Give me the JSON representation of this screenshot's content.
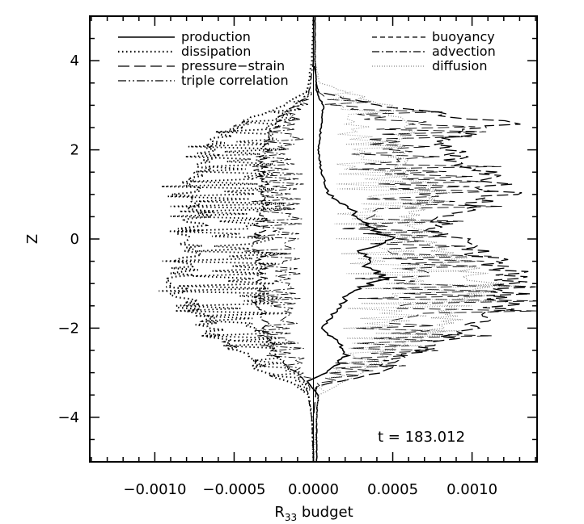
{
  "chart_data": {
    "type": "line",
    "title": "",
    "xlabel": "R",
    "xlabel_sub": "33",
    "xlabel_suffix": " budget",
    "ylabel": "Z",
    "xlim": [
      -0.00141,
      0.00141
    ],
    "ylim": [
      -5,
      5
    ],
    "x_ticks": [
      -0.001,
      -0.0005,
      0.0,
      0.0005,
      0.001
    ],
    "x_tick_labels": [
      "−0.0010",
      "−0.0005",
      "0.0000",
      "0.0005",
      "0.0010"
    ],
    "y_ticks": [
      -4,
      -2,
      0,
      2,
      4
    ],
    "y_tick_labels": [
      "−4",
      "−2",
      "0",
      "2",
      "4"
    ],
    "grid": false,
    "annotation": "t = 183.012",
    "legend": {
      "left": [
        {
          "label": "production",
          "style": "solid"
        },
        {
          "label": "dissipation",
          "style": "dotted"
        },
        {
          "label": "pressure−strain",
          "style": "longdash"
        },
        {
          "label": "triple correlation",
          "style": "dashdotdot"
        }
      ],
      "right": [
        {
          "label": "buoyancy",
          "style": "dashed"
        },
        {
          "label": "advection",
          "style": "dashdot"
        },
        {
          "label": "diffusion",
          "style": "finedot"
        }
      ]
    },
    "series": [
      {
        "name": "production",
        "style": "solid",
        "z": [
          -5.0,
          -4.0,
          -3.5,
          -3.2,
          -3.0,
          -2.6,
          -2.3,
          -2.0,
          -1.6,
          -1.2,
          -0.9,
          -0.6,
          -0.3,
          0.0,
          0.3,
          0.6,
          1.0,
          1.5,
          2.0,
          2.5,
          3.0,
          3.3,
          4.0,
          5.0
        ],
        "x": [
          2e-05,
          2e-05,
          3e-05,
          -4e-05,
          8e-05,
          0.00022,
          0.00015,
          5e-05,
          0.00015,
          0.00022,
          0.00045,
          0.00035,
          0.0003,
          0.00048,
          0.00035,
          0.00025,
          0.0001,
          5e-05,
          3e-05,
          5e-05,
          6e-05,
          2e-05,
          1e-05,
          1e-05
        ]
      },
      {
        "name": "dissipation",
        "style": "dotted",
        "z": [
          -5.0,
          -4.0,
          -3.5,
          -3.2,
          -3.0,
          -2.6,
          -2.2,
          -1.8,
          -1.4,
          -1.0,
          -0.6,
          -0.2,
          0.2,
          0.6,
          1.0,
          1.4,
          1.8,
          2.2,
          2.6,
          3.0,
          3.3,
          4.0,
          5.0
        ],
        "x": [
          0.0,
          -1e-05,
          -3e-05,
          -0.00015,
          -0.0003,
          -0.00045,
          -0.0006,
          -0.0007,
          -0.0008,
          -0.00085,
          -0.0008,
          -0.00075,
          -0.00078,
          -0.0007,
          -0.0008,
          -0.00075,
          -0.0007,
          -0.0006,
          -0.00045,
          -0.0002,
          -4e-05,
          -1e-05,
          0.0
        ]
      },
      {
        "name": "pressure−strain",
        "style": "longdash",
        "z": [
          -5.0,
          -4.0,
          -3.3,
          -3.0,
          -2.6,
          -2.2,
          -1.8,
          -1.4,
          -1.0,
          -0.6,
          -0.2,
          0.2,
          0.6,
          1.0,
          1.4,
          1.8,
          2.2,
          2.6,
          3.0,
          3.3,
          4.0,
          5.0
        ],
        "x": [
          0.0,
          0.0,
          2e-05,
          0.0004,
          0.0006,
          0.0009,
          0.0011,
          0.0012,
          0.0013,
          0.0012,
          0.001,
          0.0008,
          0.0009,
          0.0012,
          0.0011,
          0.0009,
          0.0008,
          0.0012,
          0.0004,
          3e-05,
          0.0,
          0.0
        ]
      },
      {
        "name": "advection",
        "style": "dashdot",
        "z": [
          -5.0,
          -4.0,
          -3.2,
          -2.6,
          -2.0,
          -1.4,
          -0.8,
          -0.2,
          0.4,
          1.0,
          1.6,
          2.2,
          2.8,
          3.2,
          4.0,
          5.0
        ],
        "x": [
          0.0,
          -1e-05,
          -5e-05,
          -0.00025,
          -0.0003,
          -0.00035,
          -0.00032,
          -0.00035,
          -0.00033,
          -0.0003,
          -0.00034,
          -0.0003,
          -0.0002,
          -3e-05,
          0.0,
          0.0
        ]
      },
      {
        "name": "diffusion",
        "style": "finedot",
        "z": [
          -5.0,
          -4.0,
          -3.5,
          -3.0,
          -2.5,
          -2.0,
          -1.5,
          -1.0,
          -0.5,
          0.0,
          0.5,
          1.0,
          1.5,
          2.0,
          2.5,
          3.0,
          3.5,
          4.0,
          5.0
        ],
        "x": [
          0.0,
          2e-05,
          3e-05,
          0.0003,
          0.0005,
          0.0008,
          0.0009,
          0.0011,
          0.0009,
          0.0007,
          0.0006,
          0.0008,
          0.0006,
          0.0005,
          0.0006,
          0.00045,
          4e-05,
          1e-05,
          0.0
        ]
      }
    ]
  }
}
